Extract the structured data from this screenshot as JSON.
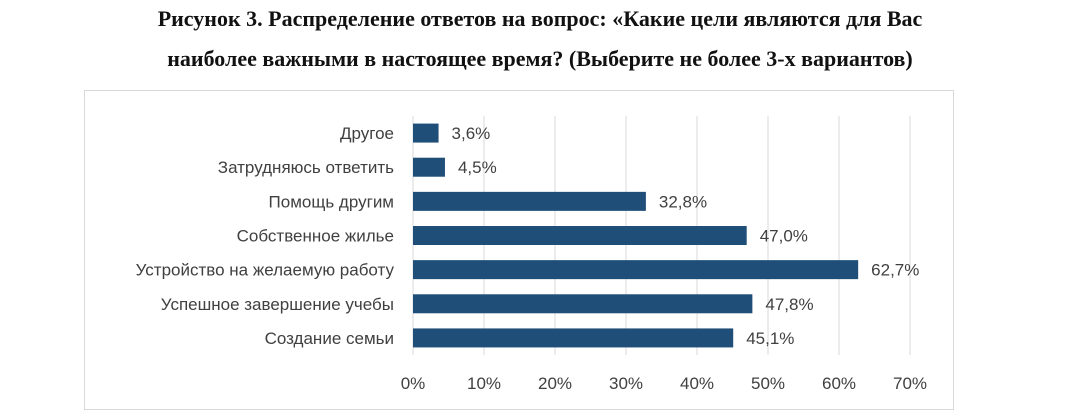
{
  "caption": {
    "line1": "Рисунок 3. Распределение ответов на вопрос: «Какие цели являются для Вас",
    "line2": "наиболее важными в настоящее время? (Выберите не более 3-х вариантов)"
  },
  "chart_data": {
    "type": "bar",
    "orientation": "horizontal",
    "categories": [
      "Другое",
      "Затрудняюсь ответить",
      "Помощь другим",
      "Собственное жилье",
      "Устройство на желаемую работу",
      "Успешное завершение учебы",
      "Создание семьи"
    ],
    "values": [
      3.6,
      4.5,
      32.8,
      47.0,
      62.7,
      47.8,
      45.1
    ],
    "value_labels": [
      "3,6%",
      "4,5%",
      "32,8%",
      "47,0%",
      "62,7%",
      "47,8%",
      "45,1%"
    ],
    "xlim": [
      0,
      70
    ],
    "xticks": [
      0,
      10,
      20,
      30,
      40,
      50,
      60,
      70
    ],
    "xtick_labels": [
      "0%",
      "10%",
      "20%",
      "30%",
      "40%",
      "50%",
      "60%",
      "70%"
    ],
    "grid": "vertical",
    "bar_color": "#1f4e79",
    "grid_color": "#d9d9d9"
  }
}
